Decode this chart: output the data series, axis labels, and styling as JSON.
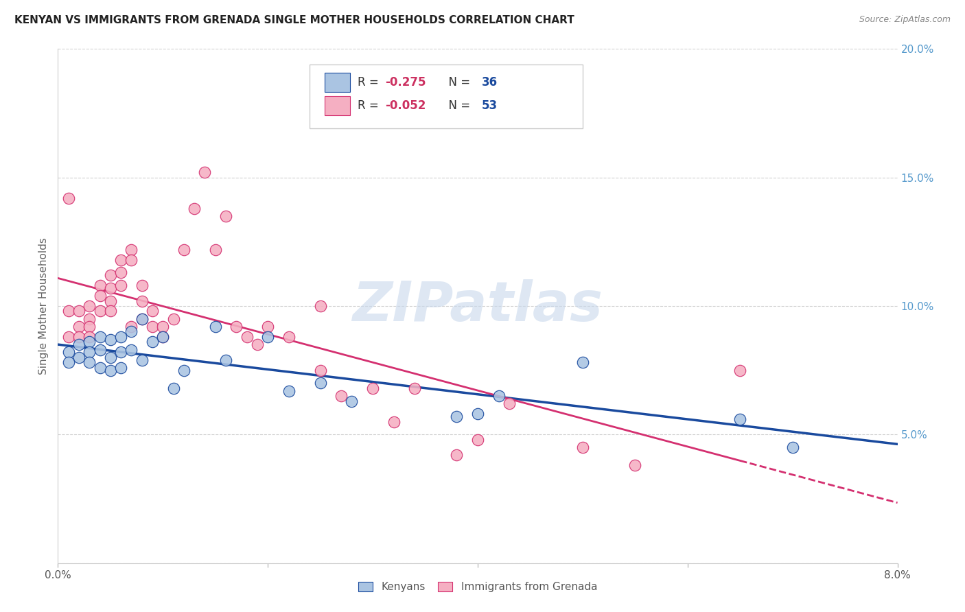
{
  "title": "KENYAN VS IMMIGRANTS FROM GRENADA SINGLE MOTHER HOUSEHOLDS CORRELATION CHART",
  "source": "Source: ZipAtlas.com",
  "ylabel": "Single Mother Households",
  "xlim": [
    0.0,
    0.08
  ],
  "ylim": [
    0.0,
    0.2
  ],
  "yticks": [
    0.0,
    0.05,
    0.1,
    0.15,
    0.2
  ],
  "ytick_labels": [
    "",
    "5.0%",
    "10.0%",
    "15.0%",
    "20.0%"
  ],
  "xticks": [
    0.0,
    0.02,
    0.04,
    0.06,
    0.08
  ],
  "xtick_labels": [
    "0.0%",
    "",
    "",
    "",
    "8.0%"
  ],
  "kenyan_R": -0.275,
  "kenyan_N": 36,
  "grenada_R": -0.052,
  "grenada_N": 53,
  "kenyan_color": "#aac4e2",
  "grenada_color": "#f5afc2",
  "kenyan_line_color": "#1a4a9e",
  "grenada_line_color": "#d43070",
  "background_color": "#ffffff",
  "grid_color": "#d0d0d0",
  "title_color": "#222222",
  "axis_label_color": "#666666",
  "right_tick_color": "#5599cc",
  "kenyan_x": [
    0.001,
    0.001,
    0.002,
    0.002,
    0.003,
    0.003,
    0.003,
    0.004,
    0.004,
    0.004,
    0.005,
    0.005,
    0.005,
    0.006,
    0.006,
    0.006,
    0.007,
    0.007,
    0.008,
    0.008,
    0.009,
    0.01,
    0.011,
    0.012,
    0.015,
    0.016,
    0.02,
    0.022,
    0.025,
    0.028,
    0.038,
    0.04,
    0.042,
    0.05,
    0.065,
    0.07
  ],
  "kenyan_y": [
    0.082,
    0.078,
    0.085,
    0.08,
    0.086,
    0.082,
    0.078,
    0.088,
    0.083,
    0.076,
    0.087,
    0.08,
    0.075,
    0.088,
    0.082,
    0.076,
    0.09,
    0.083,
    0.095,
    0.079,
    0.086,
    0.088,
    0.068,
    0.075,
    0.092,
    0.079,
    0.088,
    0.067,
    0.07,
    0.063,
    0.057,
    0.058,
    0.065,
    0.078,
    0.056,
    0.045
  ],
  "grenada_x": [
    0.001,
    0.001,
    0.001,
    0.002,
    0.002,
    0.002,
    0.003,
    0.003,
    0.003,
    0.003,
    0.004,
    0.004,
    0.004,
    0.005,
    0.005,
    0.005,
    0.005,
    0.006,
    0.006,
    0.006,
    0.007,
    0.007,
    0.007,
    0.008,
    0.008,
    0.008,
    0.009,
    0.009,
    0.01,
    0.01,
    0.011,
    0.012,
    0.013,
    0.014,
    0.015,
    0.016,
    0.017,
    0.018,
    0.019,
    0.02,
    0.022,
    0.025,
    0.025,
    0.027,
    0.03,
    0.032,
    0.034,
    0.038,
    0.04,
    0.043,
    0.05,
    0.055,
    0.065
  ],
  "grenada_y": [
    0.142,
    0.098,
    0.088,
    0.098,
    0.092,
    0.088,
    0.1,
    0.095,
    0.092,
    0.088,
    0.108,
    0.104,
    0.098,
    0.112,
    0.107,
    0.102,
    0.098,
    0.118,
    0.113,
    0.108,
    0.122,
    0.118,
    0.092,
    0.108,
    0.102,
    0.095,
    0.098,
    0.092,
    0.092,
    0.088,
    0.095,
    0.122,
    0.138,
    0.152,
    0.122,
    0.135,
    0.092,
    0.088,
    0.085,
    0.092,
    0.088,
    0.1,
    0.075,
    0.065,
    0.068,
    0.055,
    0.068,
    0.042,
    0.048,
    0.062,
    0.045,
    0.038,
    0.075
  ],
  "watermark_text": "ZIPatlas",
  "watermark_color": "#c8d8ec",
  "watermark_alpha": 0.6
}
